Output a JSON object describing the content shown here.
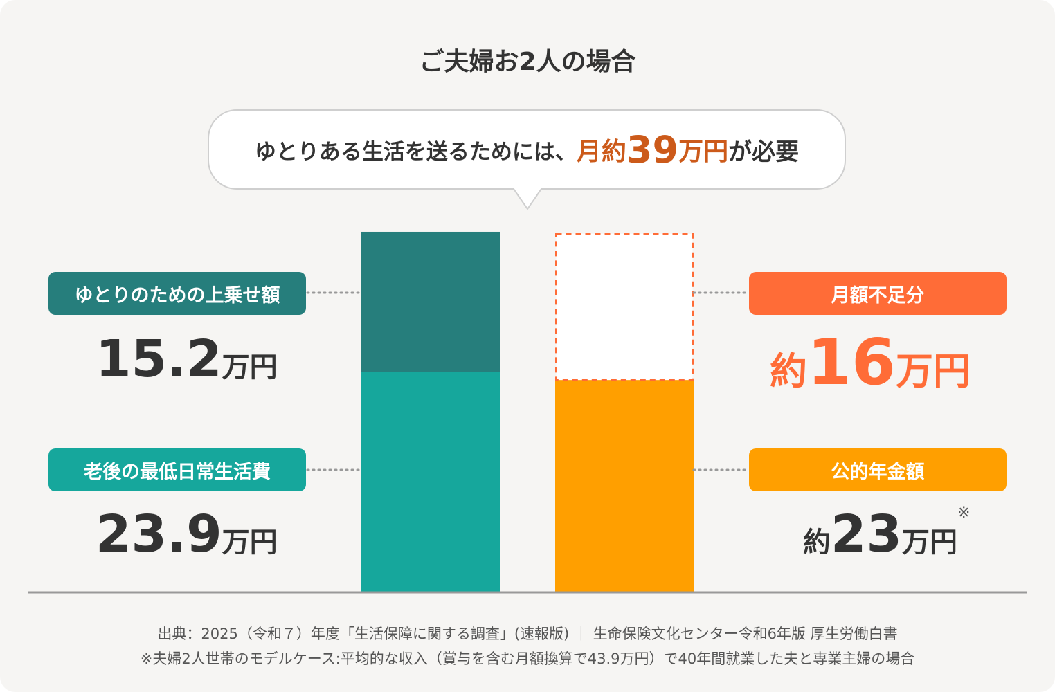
{
  "title": "ご夫婦お2人の場合",
  "bubble": {
    "prefix": "ゆとりある生活を送るためには、",
    "amount_prefix": "月約",
    "amount": "39",
    "amount_unit": "万円",
    "suffix": "が必要"
  },
  "left": {
    "upper": {
      "label": "ゆとりのための上乗せ額",
      "value": "15.2",
      "unit": "万円"
    },
    "lower": {
      "label": "老後の最低日常生活費",
      "value": "23.9",
      "unit": "万円"
    }
  },
  "right": {
    "upper": {
      "label": "月額不足分",
      "prefix": "約",
      "value": "16",
      "unit": "万円"
    },
    "lower": {
      "label": "公的年金額",
      "prefix": "約",
      "value": "23",
      "unit": "万円",
      "note_mark": "※"
    }
  },
  "colors": {
    "teal_dark": "#267e7c",
    "teal": "#16a79c",
    "orange": "#ff9f00",
    "orange_red": "#ff6c37",
    "bubble_accent": "#cc5a1a"
  },
  "chart_data": {
    "type": "bar",
    "stacked": true,
    "unit": "万円",
    "bars": [
      {
        "segments": [
          {
            "name": "老後の最低日常生活費",
            "value": 23.9
          },
          {
            "name": "ゆとりのための上乗せ額",
            "value": 15.2
          }
        ]
      },
      {
        "segments": [
          {
            "name": "公的年金額",
            "value": 23
          },
          {
            "name": "月額不足分",
            "value": 16,
            "style": "dashed-outline"
          }
        ]
      }
    ],
    "total": 39
  },
  "footer": {
    "line1": "出典：2025（令和７）年度「生活保障に関する調査」(速報版) ｜ 生命保険文化センター令和6年版 厚生労働白書",
    "line2": "※夫婦2人世帯のモデルケース:平均的な収入（賞与を含む月額換算で43.9万円）で40年間就業した夫と専業主婦の場合"
  }
}
